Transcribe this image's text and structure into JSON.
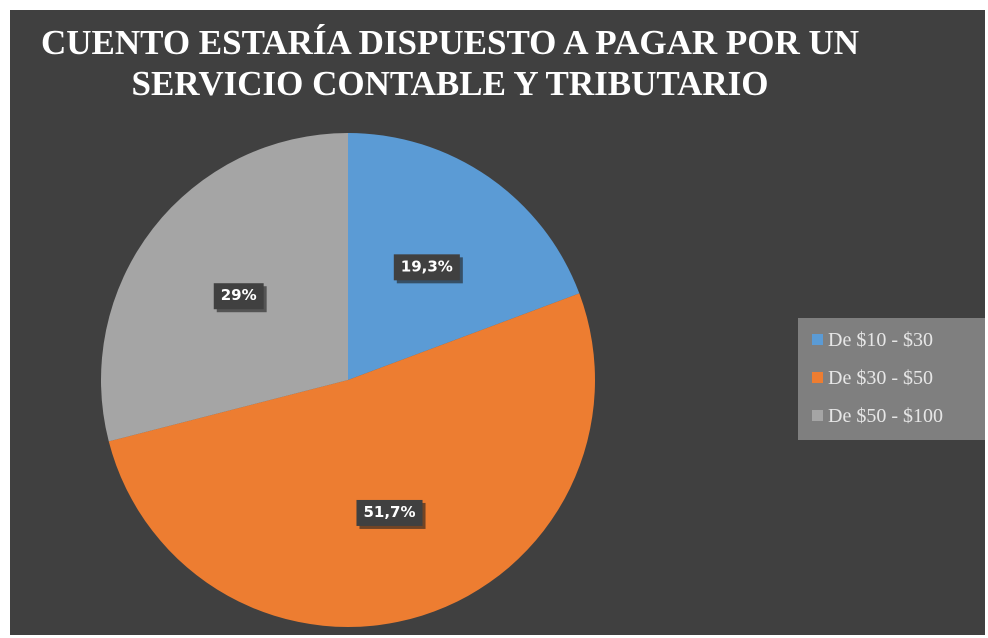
{
  "chart_data": {
    "type": "pie",
    "title": "CUENTO ESTARÍA DISPUESTO A PAGAR POR UN SERVICIO CONTABLE Y TRIBUTARIO",
    "categories": [
      "De $10 - $30",
      "De $30 - $50",
      "De $50 - $100"
    ],
    "values": [
      19.3,
      51.7,
      29
    ],
    "value_labels": [
      "19,3%",
      "51,7%",
      "29%"
    ],
    "colors": [
      "#5b9bd5",
      "#ed7d31",
      "#a5a5a5"
    ],
    "legend": "right"
  }
}
